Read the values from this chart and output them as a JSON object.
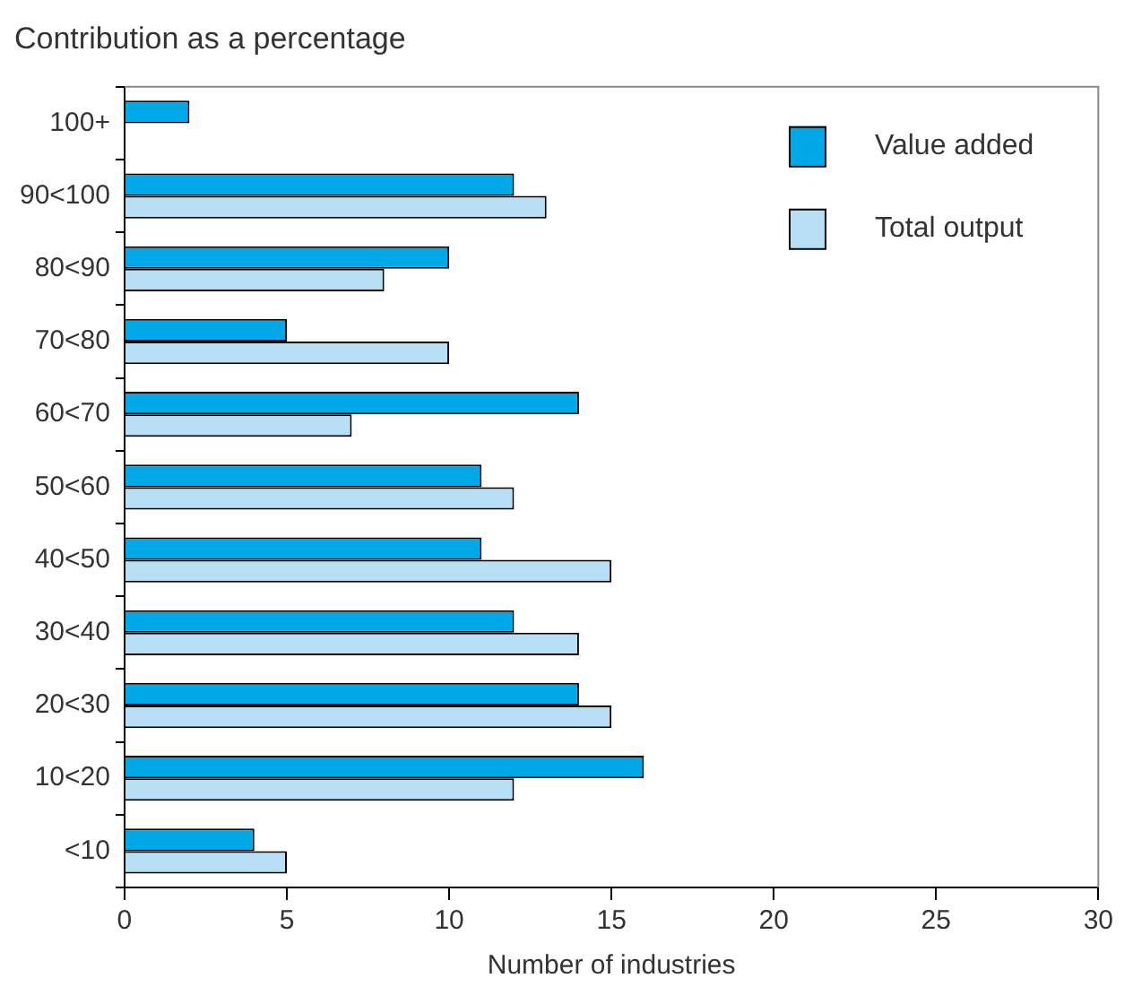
{
  "chart_data": {
    "type": "bar",
    "orientation": "horizontal",
    "title": "Contribution as a percentage",
    "xlabel": "Number of industries",
    "categories": [
      "100+",
      "90<100",
      "80<90",
      "70<80",
      "60<70",
      "50<60",
      "40<50",
      "30<40",
      "20<30",
      "10<20",
      "<10"
    ],
    "series": [
      {
        "name": "Value added",
        "color": "#00a8e8",
        "values": [
          2,
          12,
          10,
          5,
          14,
          11,
          11,
          12,
          14,
          16,
          4
        ]
      },
      {
        "name": "Total output",
        "color": "#b8dff5",
        "values": [
          0,
          13,
          8,
          10,
          7,
          12,
          15,
          14,
          15,
          12,
          5
        ]
      }
    ],
    "xlim": [
      0,
      30
    ],
    "xticks": [
      0,
      5,
      10,
      15,
      20,
      25,
      30
    ],
    "grid": false,
    "legend": "top right"
  }
}
